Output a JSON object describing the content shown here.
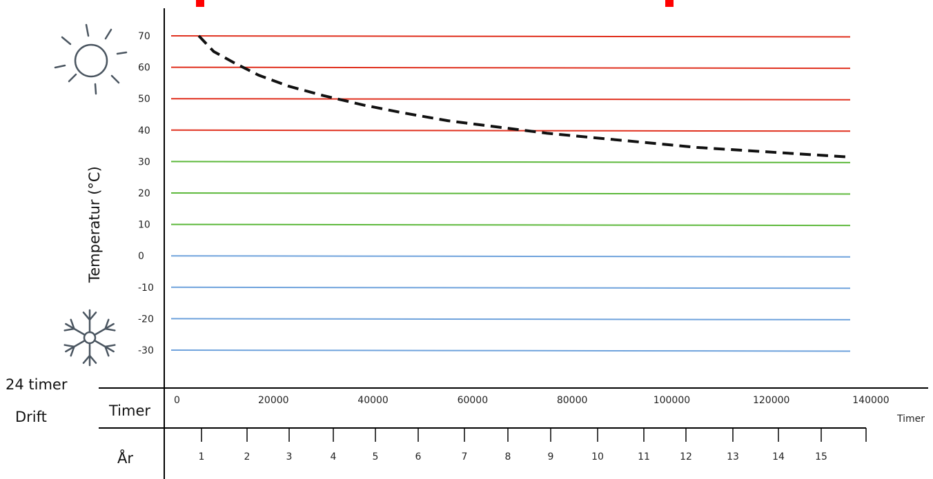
{
  "chart_data": {
    "type": "line",
    "title": "",
    "xlabel": "Timer",
    "ylabel": "Temperatur (°C)",
    "xlim": [
      0,
      140000
    ],
    "ylim": [
      -30,
      70
    ],
    "x_ticks": [
      0,
      20000,
      40000,
      60000,
      80000,
      100000,
      120000,
      140000
    ],
    "y_ticks": [
      70,
      60,
      50,
      40,
      30,
      20,
      10,
      0,
      -10,
      -20,
      -30
    ],
    "grid": true,
    "grid_colors": {
      "hot": "#e0301e",
      "mid": "#5cb83a",
      "cold": "#6ea2dc"
    },
    "hot_levels": [
      70,
      60,
      50,
      40
    ],
    "mid_levels": [
      30,
      20,
      10
    ],
    "cold_levels": [
      0,
      -10,
      -20,
      -30
    ],
    "series": [
      {
        "style": "dashed",
        "color": "#111111",
        "x": [
          5000,
          8000,
          12000,
          17000,
          23000,
          30000,
          38000,
          46000,
          55000,
          65000,
          75000,
          85000,
          95000,
          105000,
          115000,
          125000,
          135000
        ],
        "y": [
          70,
          65,
          61.5,
          57.5,
          54,
          51,
          48,
          45.5,
          43,
          41,
          39,
          37.5,
          36,
          34.5,
          33.5,
          32.5,
          31.5
        ]
      }
    ],
    "years_label": "År",
    "years": [
      "1",
      "2",
      "3",
      "4",
      "5",
      "6",
      "7",
      "8",
      "9",
      "10",
      "11",
      "12",
      "13",
      "14",
      "15"
    ],
    "left_labels": {
      "line1": "24 timer",
      "line2": "Drift",
      "row1": "Timer",
      "row2": "År"
    },
    "axis_end_label": "Timer",
    "accent_color": "#ff0000"
  },
  "icons": {
    "top": "sun-icon",
    "bottom": "snowflake-icon"
  }
}
